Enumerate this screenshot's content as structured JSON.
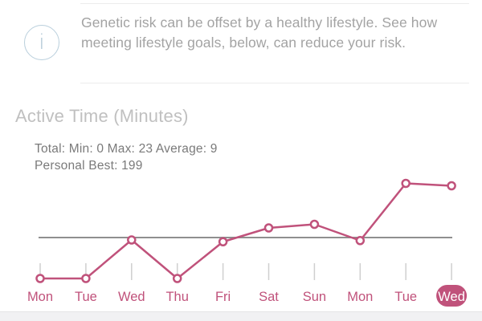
{
  "info": {
    "icon": "info-icon",
    "icon_glyph": "i",
    "text": "Genetic risk can be offset by a healthy lifestyle. See how meeting lifestyle goals, below, can reduce your risk."
  },
  "section": {
    "title": "Active Time (Minutes)",
    "stats_line1": "Total: Min: 0 Max: 23 Average: 9",
    "stats_line2": "Personal Best: 199"
  },
  "colors": {
    "series": "#c0527b",
    "average_line": "#8f8f8f",
    "axis": "#cfcfcf",
    "selected_bg": "#c0527b",
    "selected_text": "#ffffff"
  },
  "chart_data": {
    "type": "line",
    "categories": [
      "Mon",
      "Tue",
      "Wed",
      "Thu",
      "Fri",
      "Sat",
      "Sun",
      "Mon",
      "Tue",
      "Wed"
    ],
    "values": [
      0,
      0,
      6.4,
      0,
      6.1,
      8.4,
      9.0,
      6.3,
      15.8,
      15.4
    ],
    "average": 9,
    "selected_index": 9,
    "ylim": [
      0,
      16
    ],
    "grid": false,
    "legend": "none"
  }
}
